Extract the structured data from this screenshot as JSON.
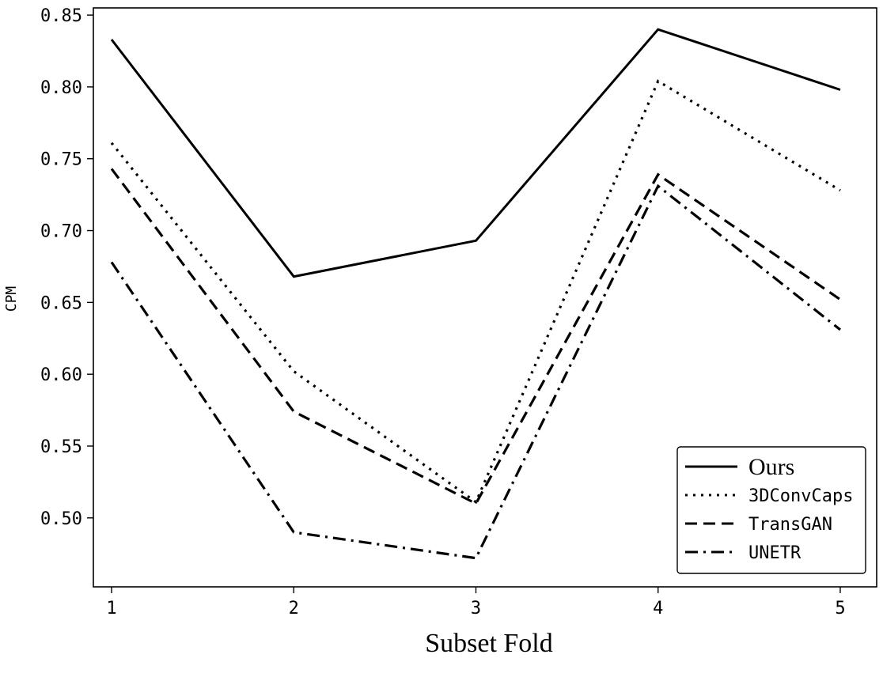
{
  "chart_data": {
    "type": "line",
    "xlabel": "Subset Fold",
    "ylabel": "CPM",
    "x": [
      1,
      2,
      3,
      4,
      5
    ],
    "x_ticks": [
      "1",
      "2",
      "3",
      "4",
      "5"
    ],
    "xlim": [
      0.9,
      5.2
    ],
    "ylim": [
      0.452,
      0.855
    ],
    "y_ticks": [
      "0.50",
      "0.55",
      "0.60",
      "0.65",
      "0.70",
      "0.75",
      "0.80",
      "0.85"
    ],
    "legend_position": "bottom-right",
    "grid": false,
    "series": [
      {
        "name": "Ours",
        "values": [
          0.833,
          0.668,
          0.693,
          0.84,
          0.798
        ],
        "style": "solid",
        "color": "#000000"
      },
      {
        "name": "3DConvCaps",
        "values": [
          0.761,
          0.602,
          0.511,
          0.804,
          0.728
        ],
        "style": "dotted",
        "color": "#000000"
      },
      {
        "name": "TransGAN",
        "values": [
          0.743,
          0.574,
          0.51,
          0.739,
          0.652
        ],
        "style": "dashed",
        "color": "#000000"
      },
      {
        "name": "UNETR",
        "values": [
          0.678,
          0.49,
          0.472,
          0.731,
          0.631
        ],
        "style": "dashdot",
        "color": "#000000"
      }
    ]
  }
}
